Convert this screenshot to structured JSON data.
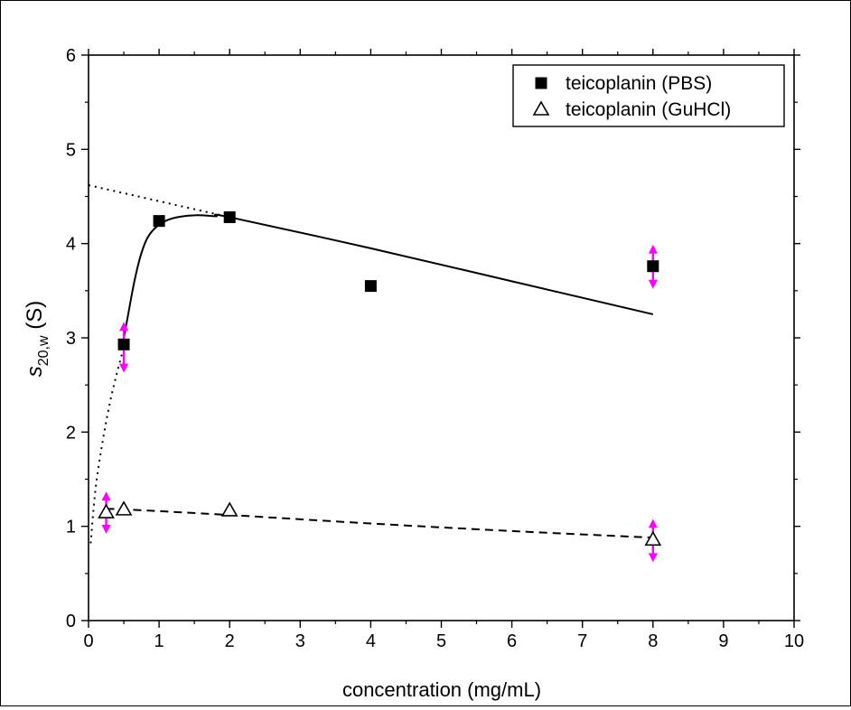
{
  "chart_data": {
    "type": "scatter",
    "title": "",
    "xlabel": "concentration (mg/mL)",
    "ylabel_main": "s",
    "ylabel_sub": "20,w",
    "ylabel_unit": " (S)",
    "xlim": [
      0,
      10
    ],
    "ylim": [
      0,
      6
    ],
    "xticks": [
      0,
      1,
      2,
      3,
      4,
      5,
      6,
      7,
      8,
      9,
      10
    ],
    "yticks": [
      0,
      1,
      2,
      3,
      4,
      5,
      6
    ],
    "grid": false,
    "legend_position": "top-right",
    "series": [
      {
        "name": "teicoplanin (PBS)",
        "marker": "filled-square",
        "color": "#000000",
        "x": [
          0.5,
          1,
          2,
          4,
          8
        ],
        "y": [
          2.93,
          4.24,
          4.28,
          3.55,
          3.76
        ]
      },
      {
        "name": "teicoplanin (GuHCl)",
        "marker": "open-triangle",
        "color": "#000000",
        "x": [
          0.25,
          0.5,
          2,
          8
        ],
        "y": [
          1.15,
          1.18,
          1.17,
          0.86
        ]
      }
    ],
    "fit_lines": [
      {
        "style": "solid",
        "points": [
          [
            0.47,
            2.88
          ],
          [
            0.55,
            3.2
          ],
          [
            0.65,
            3.6
          ],
          [
            0.75,
            3.9
          ],
          [
            0.85,
            4.08
          ],
          [
            1.0,
            4.2
          ],
          [
            1.2,
            4.27
          ],
          [
            1.5,
            4.3
          ],
          [
            1.8,
            4.29
          ],
          [
            2.0,
            4.28
          ],
          [
            4.0,
            3.95
          ],
          [
            6.0,
            3.6
          ],
          [
            8.0,
            3.25
          ]
        ]
      },
      {
        "style": "dotted",
        "points": [
          [
            0.0,
            4.62
          ],
          [
            2.0,
            4.28
          ]
        ]
      },
      {
        "style": "dotted",
        "points": [
          [
            0.03,
            0.82
          ],
          [
            0.1,
            1.4
          ],
          [
            0.2,
            1.9
          ],
          [
            0.3,
            2.3
          ],
          [
            0.4,
            2.62
          ],
          [
            0.5,
            2.9
          ]
        ]
      },
      {
        "style": "dashed",
        "points": [
          [
            0.25,
            1.18
          ],
          [
            0.5,
            1.18
          ],
          [
            2.0,
            1.12
          ],
          [
            4.0,
            1.03
          ],
          [
            6.0,
            0.95
          ],
          [
            8.0,
            0.88
          ]
        ]
      }
    ],
    "error_arrows": [
      {
        "x": 0.5,
        "y": 2.93,
        "low": 2.63,
        "high": 3.17,
        "color": "#ff00ff"
      },
      {
        "x": 8,
        "y": 3.76,
        "low": 3.52,
        "high": 3.99,
        "color": "#ff00ff"
      },
      {
        "x": 0.25,
        "y": 1.15,
        "low": 0.92,
        "high": 1.37,
        "color": "#ff00ff"
      },
      {
        "x": 8,
        "y": 0.86,
        "low": 0.62,
        "high": 1.08,
        "color": "#ff00ff"
      }
    ]
  }
}
